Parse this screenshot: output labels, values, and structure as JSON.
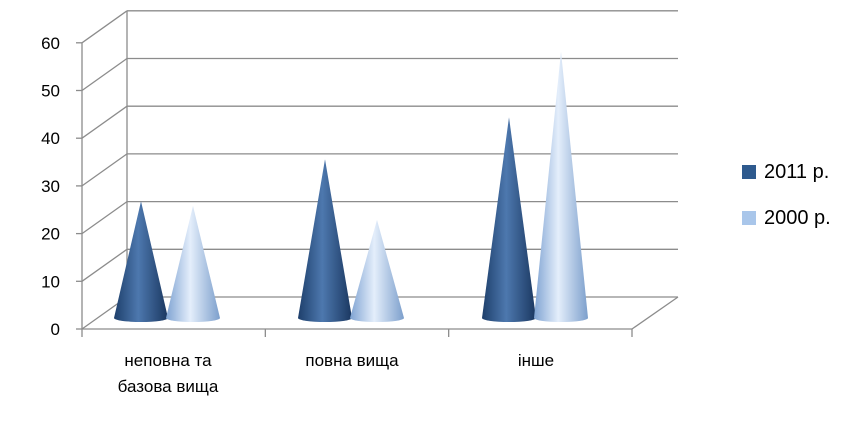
{
  "chart_data": {
    "type": "bar",
    "subtype": "3d-cone",
    "categories": [
      [
        "неповна та",
        "базова вища"
      ],
      [
        "повна вища"
      ],
      [
        "інше"
      ]
    ],
    "series": [
      {
        "name": "2011 р.",
        "values": [
          25,
          34,
          43
        ],
        "color": "#2E5A8E"
      },
      {
        "name": "2000 р.",
        "values": [
          24,
          21,
          57
        ],
        "color": "#A9C6EA"
      }
    ],
    "ylim": [
      0,
      60
    ],
    "yticks": [
      "0",
      "10",
      "20",
      "30",
      "40",
      "50",
      "60"
    ],
    "grid": true,
    "legend_position": "right"
  }
}
